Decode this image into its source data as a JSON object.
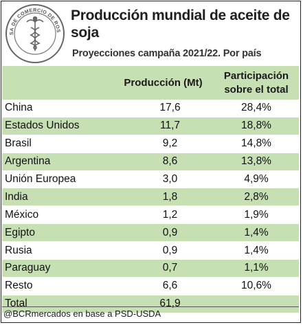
{
  "header": {
    "title": "Producción mundial de aceite de soja",
    "subtitle": "Proyecciones campaña 2021/22. Por país",
    "logo_text_top": "BOLSA DE COMERCIO DE ROSARIO"
  },
  "table": {
    "columns": [
      "",
      "Producción (Mt)",
      "Participación sobre el total"
    ],
    "rows": [
      {
        "country": "China",
        "production": "17,6",
        "share": "28,4%"
      },
      {
        "country": "Estados Unidos",
        "production": "11,7",
        "share": "18,8%"
      },
      {
        "country": "Brasil",
        "production": "9,2",
        "share": "14,8%"
      },
      {
        "country": "Argentina",
        "production": "8,6",
        "share": "13,8%"
      },
      {
        "country": "Unión Europea",
        "production": "3,0",
        "share": "4,9%"
      },
      {
        "country": "India",
        "production": "1,8",
        "share": "2,8%"
      },
      {
        "country": "México",
        "production": "1,2",
        "share": "1,9%"
      },
      {
        "country": "Egipto",
        "production": "0,9",
        "share": "1,4%"
      },
      {
        "country": "Rusia",
        "production": "0,9",
        "share": "1,4%"
      },
      {
        "country": "Paraguay",
        "production": "0,7",
        "share": "1,1%"
      },
      {
        "country": "Resto",
        "production": "6,6",
        "share": "10,6%"
      }
    ],
    "total": {
      "label": "Total",
      "production": "61,9",
      "share": ""
    }
  },
  "footer": {
    "source": "@BCRmercados en base a PSD-USDA"
  },
  "colors": {
    "accent_green": "#c6dfb3",
    "border": "#222222"
  }
}
